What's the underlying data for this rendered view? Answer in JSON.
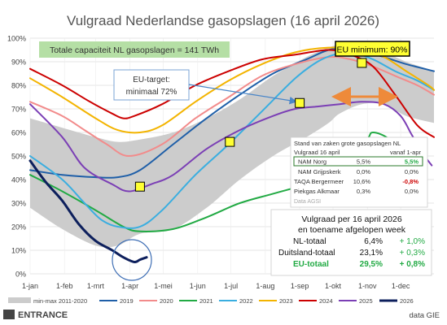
{
  "chart_data": {
    "type": "line",
    "title": "Vulgraad Nederlandse gasopslagen (16 april 2026)",
    "ylim": [
      0,
      100
    ],
    "y_ticks": [
      "0%",
      "10%",
      "20%",
      "30%",
      "40%",
      "50%",
      "60%",
      "70%",
      "80%",
      "90%",
      "100%"
    ],
    "months": [
      "1-jan",
      "1-feb",
      "1-mrt",
      "1-apr",
      "1-mei",
      "1-jun",
      "1-jul",
      "1-aug",
      "1-sep",
      "1-okt",
      "1-nov",
      "1-dec"
    ],
    "x_unit": "day of year",
    "grid": true,
    "legend_position": "bottom",
    "band": {
      "name": "min-max 2011-2020",
      "color": "#cccccc",
      "min": [
        [
          1,
          28
        ],
        [
          30,
          19
        ],
        [
          60,
          12
        ],
        [
          80,
          12
        ],
        [
          100,
          17
        ],
        [
          130,
          19
        ],
        [
          160,
          28
        ],
        [
          190,
          40
        ],
        [
          220,
          50
        ],
        [
          250,
          58
        ],
        [
          270,
          64
        ],
        [
          280,
          68
        ],
        [
          300,
          72
        ],
        [
          320,
          72
        ],
        [
          340,
          67
        ],
        [
          365,
          64
        ]
      ],
      "max": [
        [
          1,
          66
        ],
        [
          30,
          62
        ],
        [
          60,
          58
        ],
        [
          80,
          56
        ],
        [
          100,
          57
        ],
        [
          130,
          60
        ],
        [
          160,
          66
        ],
        [
          190,
          74
        ],
        [
          220,
          84
        ],
        [
          250,
          92
        ],
        [
          270,
          96
        ],
        [
          280,
          97
        ],
        [
          300,
          96
        ],
        [
          320,
          94
        ],
        [
          340,
          90
        ],
        [
          365,
          86
        ]
      ]
    },
    "series": [
      {
        "name": "2019",
        "color": "#1f5fa8",
        "points": [
          [
            1,
            44
          ],
          [
            30,
            42
          ],
          [
            60,
            41
          ],
          [
            80,
            41
          ],
          [
            100,
            44
          ],
          [
            130,
            55
          ],
          [
            160,
            66
          ],
          [
            190,
            76
          ],
          [
            220,
            85
          ],
          [
            250,
            91
          ],
          [
            270,
            95
          ],
          [
            290,
            96
          ],
          [
            305,
            94
          ],
          [
            320,
            92
          ],
          [
            340,
            89
          ],
          [
            365,
            86
          ]
        ]
      },
      {
        "name": "2020",
        "color": "#f28b8b",
        "points": [
          [
            1,
            73
          ],
          [
            30,
            67
          ],
          [
            50,
            61
          ],
          [
            70,
            55
          ],
          [
            90,
            50
          ],
          [
            120,
            55
          ],
          [
            150,
            66
          ],
          [
            180,
            75
          ],
          [
            210,
            84
          ],
          [
            240,
            89
          ],
          [
            270,
            92
          ],
          [
            290,
            91
          ],
          [
            310,
            88
          ],
          [
            330,
            84
          ],
          [
            350,
            80
          ],
          [
            365,
            76
          ]
        ]
      },
      {
        "name": "2021",
        "color": "#22aa44",
        "points": [
          [
            1,
            42
          ],
          [
            30,
            35
          ],
          [
            60,
            27
          ],
          [
            85,
            20
          ],
          [
            100,
            18
          ],
          [
            130,
            19
          ],
          [
            160,
            24
          ],
          [
            190,
            30
          ],
          [
            220,
            34
          ],
          [
            250,
            38
          ],
          [
            270,
            42
          ],
          [
            290,
            48
          ],
          [
            305,
            57
          ],
          [
            310,
            60
          ],
          [
            325,
            57
          ],
          [
            340,
            48
          ],
          [
            350,
            38
          ],
          [
            358,
            36
          ]
        ]
      },
      {
        "name": "2022",
        "color": "#3aaee0",
        "points": [
          [
            1,
            50
          ],
          [
            30,
            40
          ],
          [
            50,
            30
          ],
          [
            65,
            23
          ],
          [
            80,
            20
          ],
          [
            100,
            20
          ],
          [
            120,
            27
          ],
          [
            150,
            42
          ],
          [
            180,
            55
          ],
          [
            210,
            69
          ],
          [
            240,
            83
          ],
          [
            260,
            90
          ],
          [
            275,
            93
          ],
          [
            290,
            94
          ],
          [
            310,
            91
          ],
          [
            330,
            86
          ],
          [
            350,
            82
          ],
          [
            365,
            78
          ]
        ]
      },
      {
        "name": "2023",
        "color": "#f3b400",
        "points": [
          [
            1,
            83
          ],
          [
            30,
            75
          ],
          [
            60,
            66
          ],
          [
            80,
            61
          ],
          [
            100,
            60
          ],
          [
            120,
            63
          ],
          [
            150,
            73
          ],
          [
            180,
            82
          ],
          [
            210,
            89
          ],
          [
            240,
            94
          ],
          [
            270,
            96
          ],
          [
            300,
            95
          ],
          [
            320,
            92
          ],
          [
            340,
            86
          ],
          [
            360,
            80
          ],
          [
            365,
            78
          ]
        ]
      },
      {
        "name": "2024",
        "color": "#cc0000",
        "points": [
          [
            1,
            87
          ],
          [
            30,
            80
          ],
          [
            55,
            73
          ],
          [
            75,
            68
          ],
          [
            85,
            66
          ],
          [
            95,
            67
          ],
          [
            120,
            72
          ],
          [
            150,
            80
          ],
          [
            180,
            86
          ],
          [
            210,
            91
          ],
          [
            240,
            93
          ],
          [
            270,
            95
          ],
          [
            290,
            93
          ],
          [
            310,
            88
          ],
          [
            330,
            76
          ],
          [
            350,
            63
          ],
          [
            365,
            58
          ]
        ]
      },
      {
        "name": "2025",
        "color": "#7b3fb5",
        "points": [
          [
            1,
            72
          ],
          [
            30,
            58
          ],
          [
            50,
            45
          ],
          [
            75,
            38
          ],
          [
            90,
            35
          ],
          [
            110,
            38
          ],
          [
            130,
            42
          ],
          [
            160,
            53
          ],
          [
            190,
            61
          ],
          [
            220,
            67
          ],
          [
            240,
            70
          ],
          [
            260,
            71
          ],
          [
            280,
            72
          ],
          [
            300,
            73
          ],
          [
            320,
            72
          ],
          [
            335,
            67
          ],
          [
            345,
            59
          ],
          [
            355,
            51
          ],
          [
            363,
            46
          ]
        ]
      },
      {
        "name": "2026",
        "color": "#0d1f5c",
        "points": [
          [
            1,
            48
          ],
          [
            15,
            39
          ],
          [
            30,
            31
          ],
          [
            45,
            21
          ],
          [
            60,
            14
          ],
          [
            75,
            10
          ],
          [
            85,
            7
          ],
          [
            95,
            5
          ],
          [
            100,
            6
          ],
          [
            106,
            7
          ]
        ]
      }
    ],
    "eu_target_points": [
      [
        100,
        37
      ],
      [
        181,
        56
      ],
      [
        244,
        72.5
      ],
      [
        300,
        89.5
      ]
    ],
    "annotations": {
      "capacity": "Totale capaciteit NL gasopslagen = 141 TWh",
      "eu_minimum": "EU minimum: 90%",
      "eu_target_line1": "EU-target:",
      "eu_target_line2": "minimaal 72%"
    },
    "storage_table": {
      "title": "Stand van zaken grote gasopslagen NL",
      "header": [
        "Vulgraad 16 april",
        "",
        "vanaf 1-apr"
      ],
      "rows": [
        [
          "NAM Norg",
          "5,5%",
          "5,5%"
        ],
        [
          "NAM Grijpskerk",
          "0,0%",
          "0,0%"
        ],
        [
          "TAQA Bergermeer",
          "10,6%",
          "-0,8%"
        ],
        [
          "Piekgas Alkmaar",
          "0,3%",
          "0,0%"
        ]
      ],
      "source": "Data AGSI"
    },
    "summary_box": {
      "title1": "Vulgraad per 16 april 2026",
      "title2": "en toename afgelopen week",
      "rows": [
        [
          "NL-totaal",
          "6,4%",
          "+ 1,0%"
        ],
        [
          "Duitsland-totaal",
          "23,1%",
          "+ 0,3%"
        ],
        [
          "EU-totaal",
          "29,5%",
          "+ 0,8%"
        ]
      ]
    },
    "legend_band_label": "min-max 2011-2020",
    "colors": {
      "positive": "#22aa44",
      "negative": "#cc0000",
      "eu_total": "#22aa44",
      "title": "#555555",
      "capacity_bg": "#b5dfa5",
      "eu_min_bg": "#ffff33",
      "target_marker": "#ffff33"
    }
  },
  "footer": {
    "brand": "ENTRANCE",
    "source": "data GIE"
  }
}
